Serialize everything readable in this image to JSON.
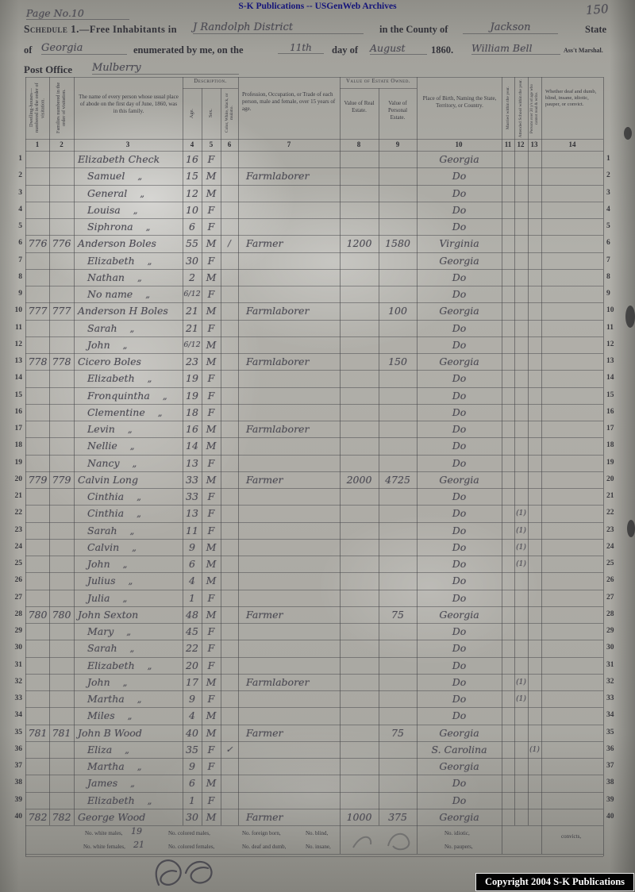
{
  "banner": {
    "text": "S-K Publications -- USGenWeb Archives"
  },
  "colors": {
    "banner_text": "#15157a",
    "ink": "#4a4952",
    "print": "#33333a",
    "page": "#aeaca6",
    "copyright_bg": "#030303"
  },
  "header": {
    "page_no_hw": "Page No.10",
    "sheet_no_hw": "150",
    "schedule_title": "Schedule 1.",
    "title_rest": "—Free Inhabitants in",
    "district_hw": "J Randolph District",
    "county_label": "in the County of",
    "county_hw": "Jackson",
    "state_label": "State",
    "of_label": "of",
    "state_hw": "Georgia",
    "enumerated_label": "enumerated by me, on the",
    "day_hw": "11th",
    "day_of_label": "day of",
    "month_hw": "August",
    "year_label": "1860.",
    "marshal_hw": "William Bell",
    "marshal_title": "Ass't Marshal.",
    "post_office_label": "Post Office",
    "post_office_hw": "Mulberry"
  },
  "table": {
    "band_description": "Description.",
    "band_estate": "Value of Estate Owned.",
    "columns": [
      {
        "no": "1",
        "title": "Dwelling-houses— numbered in the order of visitation."
      },
      {
        "no": "2",
        "title": "Families numbered in the order of visitation."
      },
      {
        "no": "3",
        "title": "The name of every person whose usual place of abode on the first day of June, 1860, was in this family."
      },
      {
        "no": "4",
        "title": "Age."
      },
      {
        "no": "5",
        "title": "Sex."
      },
      {
        "no": "6",
        "title": "Color, White, black, or mulatto."
      },
      {
        "no": "7",
        "title": "Profession, Occupation, or Trade of each person, male and female, over 15 years of age."
      },
      {
        "no": "8",
        "title": "Value of Real Estate."
      },
      {
        "no": "9",
        "title": "Value of Personal Estate."
      },
      {
        "no": "10",
        "title": "Place of Birth, Naming the State, Territory, or Country."
      },
      {
        "no": "11",
        "title": "Married within the year."
      },
      {
        "no": "12",
        "title": "Attended School within the year."
      },
      {
        "no": "13",
        "title": "Persons over 20 y's of age who cannot read & write."
      },
      {
        "no": "14",
        "title": "Whether deaf and dumb, blind, insane, idiotic, pauper, or convict."
      }
    ],
    "row_format": [
      "dwelling_no",
      "family_no",
      "name",
      "ditto",
      "age",
      "sex",
      "color_mark",
      "occupation",
      "value_real_estate",
      "value_personal_estate",
      "place_of_birth",
      "attended_school",
      "cannot_read_write"
    ],
    "rows": [
      [
        "",
        "",
        "Elizabeth Check",
        0,
        "16",
        "F",
        "",
        "",
        "",
        "",
        "Georgia",
        "",
        ""
      ],
      [
        "",
        "",
        "Samuel",
        1,
        "15",
        "M",
        "",
        "Farmlaborer",
        "",
        "",
        "Do",
        "",
        ""
      ],
      [
        "",
        "",
        "General",
        1,
        "12",
        "M",
        "",
        "",
        "",
        "",
        "Do",
        "",
        ""
      ],
      [
        "",
        "",
        "Louisa",
        1,
        "10",
        "F",
        "",
        "",
        "",
        "",
        "Do",
        "",
        ""
      ],
      [
        "",
        "",
        "Siphrona",
        1,
        "6",
        "F",
        "",
        "",
        "",
        "",
        "Do",
        "",
        ""
      ],
      [
        "776",
        "776",
        "Anderson Boles",
        0,
        "55",
        "M",
        "/",
        "Farmer",
        "1200",
        "1580",
        "Virginia",
        "",
        ""
      ],
      [
        "",
        "",
        "Elizabeth",
        1,
        "30",
        "F",
        "",
        "",
        "",
        "",
        "Georgia",
        "",
        ""
      ],
      [
        "",
        "",
        "Nathan",
        1,
        "2",
        "M",
        "",
        "",
        "",
        "",
        "Do",
        "",
        ""
      ],
      [
        "",
        "",
        "No name",
        1,
        "6/12",
        "F",
        "",
        "",
        "",
        "",
        "Do",
        "",
        ""
      ],
      [
        "777",
        "777",
        "Anderson H Boles",
        0,
        "21",
        "M",
        "",
        "Farmlaborer",
        "",
        "100",
        "Georgia",
        "",
        ""
      ],
      [
        "",
        "",
        "Sarah",
        1,
        "21",
        "F",
        "",
        "",
        "",
        "",
        "Do",
        "",
        ""
      ],
      [
        "",
        "",
        "John",
        1,
        "6/12",
        "M",
        "",
        "",
        "",
        "",
        "Do",
        "",
        ""
      ],
      [
        "778",
        "778",
        "Cicero Boles",
        0,
        "23",
        "M",
        "",
        "Farmlaborer",
        "",
        "150",
        "Georgia",
        "",
        ""
      ],
      [
        "",
        "",
        "Elizabeth",
        1,
        "19",
        "F",
        "",
        "",
        "",
        "",
        "Do",
        "",
        ""
      ],
      [
        "",
        "",
        "Fronquintha",
        1,
        "19",
        "F",
        "",
        "",
        "",
        "",
        "Do",
        "",
        ""
      ],
      [
        "",
        "",
        "Clementine",
        1,
        "18",
        "F",
        "",
        "",
        "",
        "",
        "Do",
        "",
        ""
      ],
      [
        "",
        "",
        "Levin",
        1,
        "16",
        "M",
        "",
        "Farmlaborer",
        "",
        "",
        "Do",
        "",
        ""
      ],
      [
        "",
        "",
        "Nellie",
        1,
        "14",
        "M",
        "",
        "",
        "",
        "",
        "Do",
        "",
        ""
      ],
      [
        "",
        "",
        "Nancy",
        1,
        "13",
        "F",
        "",
        "",
        "",
        "",
        "Do",
        "",
        ""
      ],
      [
        "779",
        "779",
        "Calvin Long",
        0,
        "33",
        "M",
        "",
        "Farmer",
        "2000",
        "4725",
        "Georgia",
        "",
        ""
      ],
      [
        "",
        "",
        "Cinthia",
        1,
        "33",
        "F",
        "",
        "",
        "",
        "",
        "Do",
        "",
        ""
      ],
      [
        "",
        "",
        "Cinthia",
        1,
        "13",
        "F",
        "",
        "",
        "",
        "",
        "Do",
        "(1)",
        ""
      ],
      [
        "",
        "",
        "Sarah",
        1,
        "11",
        "F",
        "",
        "",
        "",
        "",
        "Do",
        "(1)",
        ""
      ],
      [
        "",
        "",
        "Calvin",
        1,
        "9",
        "M",
        "",
        "",
        "",
        "",
        "Do",
        "(1)",
        ""
      ],
      [
        "",
        "",
        "John",
        1,
        "6",
        "M",
        "",
        "",
        "",
        "",
        "Do",
        "(1)",
        ""
      ],
      [
        "",
        "",
        "Julius",
        1,
        "4",
        "M",
        "",
        "",
        "",
        "",
        "Do",
        "",
        ""
      ],
      [
        "",
        "",
        "Julia",
        1,
        "1",
        "F",
        "",
        "",
        "",
        "",
        "Do",
        "",
        ""
      ],
      [
        "780",
        "780",
        "John Sexton",
        0,
        "48",
        "M",
        "",
        "Farmer",
        "",
        "75",
        "Georgia",
        "",
        ""
      ],
      [
        "",
        "",
        "Mary",
        1,
        "45",
        "F",
        "",
        "",
        "",
        "",
        "Do",
        "",
        ""
      ],
      [
        "",
        "",
        "Sarah",
        1,
        "22",
        "F",
        "",
        "",
        "",
        "",
        "Do",
        "",
        ""
      ],
      [
        "",
        "",
        "Elizabeth",
        1,
        "20",
        "F",
        "",
        "",
        "",
        "",
        "Do",
        "",
        ""
      ],
      [
        "",
        "",
        "John",
        1,
        "17",
        "M",
        "",
        "Farmlaborer",
        "",
        "",
        "Do",
        "(1)",
        ""
      ],
      [
        "",
        "",
        "Martha",
        1,
        "9",
        "F",
        "",
        "",
        "",
        "",
        "Do",
        "(1)",
        ""
      ],
      [
        "",
        "",
        "Miles",
        1,
        "4",
        "M",
        "",
        "",
        "",
        "",
        "Do",
        "",
        ""
      ],
      [
        "781",
        "781",
        "John B Wood",
        0,
        "40",
        "M",
        "",
        "Farmer",
        "",
        "75",
        "Georgia",
        "",
        ""
      ],
      [
        "",
        "",
        "Eliza",
        1,
        "35",
        "F",
        "✓",
        "",
        "",
        "",
        "S. Carolina",
        "",
        "(1)"
      ],
      [
        "",
        "",
        "Martha",
        1,
        "9",
        "F",
        "",
        "",
        "",
        "",
        "Georgia",
        "",
        ""
      ],
      [
        "",
        "",
        "James",
        1,
        "6",
        "M",
        "",
        "",
        "",
        "",
        "Do",
        "",
        ""
      ],
      [
        "",
        "",
        "Elizabeth",
        1,
        "1",
        "F",
        "",
        "",
        "",
        "",
        "Do",
        "",
        ""
      ],
      [
        "782",
        "782",
        "George Wood",
        0,
        "30",
        "M",
        "",
        "Farmer",
        "1000",
        "375",
        "Georgia",
        "",
        ""
      ]
    ]
  },
  "footer": {
    "line1": [
      "No. white males,",
      "No. colored males,",
      "No. foreign born,",
      "No. blind,",
      "No. idiotic,",
      "convicts,"
    ],
    "line2": [
      "No. white females,",
      "No. colored females,",
      "No. deaf and dumb,",
      "No. insane,",
      "No. paupers,"
    ],
    "white_males_hw": "19",
    "white_females_hw": "21"
  },
  "copyright": "Copyright 2004 S-K Publications"
}
